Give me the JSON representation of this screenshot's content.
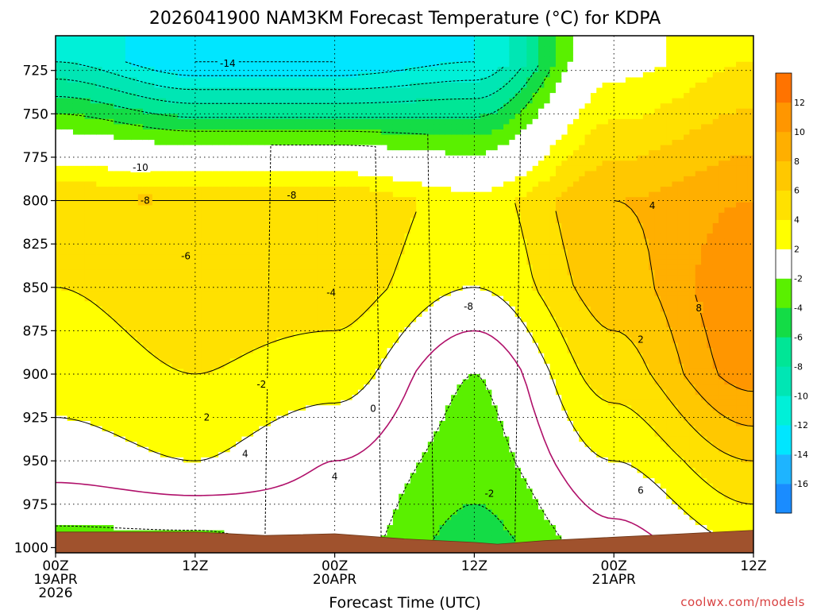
{
  "chart_data": {
    "type": "heatmap",
    "title": "2026041900 NAM3KM Forecast Temperature (°C) for KDPA",
    "xlabel": "Forecast Time (UTC)",
    "ylabel": "",
    "credit": "coolwx.com/models",
    "x_range_hours": [
      0,
      60
    ],
    "y_range_hPa": [
      1003,
      705
    ],
    "y_scale": "pressure (inverted)",
    "x_ticks": [
      {
        "hour": 0,
        "lines": [
          "00Z",
          "19APR",
          "2026"
        ]
      },
      {
        "hour": 12,
        "lines": [
          "12Z"
        ]
      },
      {
        "hour": 24,
        "lines": [
          "00Z",
          "20APR"
        ]
      },
      {
        "hour": 36,
        "lines": [
          "12Z"
        ]
      },
      {
        "hour": 48,
        "lines": [
          "00Z",
          "21APR"
        ]
      },
      {
        "hour": 60,
        "lines": [
          "12Z"
        ]
      }
    ],
    "y_ticks": [
      725,
      750,
      775,
      800,
      825,
      850,
      875,
      900,
      925,
      950,
      975,
      1000
    ],
    "grid": "dotted",
    "colorbar": {
      "placement": "right",
      "levels": [
        -18,
        -16,
        -14,
        -12,
        -10,
        -8,
        -6,
        -4,
        -2,
        2,
        4,
        6,
        8,
        10,
        12,
        14
      ],
      "tick_labels": [
        "-16",
        "-14",
        "-12",
        "-10",
        "-8",
        "-6",
        "-4",
        "-2",
        "2",
        "4",
        "6",
        "8",
        "10",
        "12"
      ],
      "colors": [
        "#1a8cff",
        "#1eb4ff",
        "#00e6ff",
        "#00f0d8",
        "#00e6b4",
        "#00e696",
        "#14dc46",
        "#5af000",
        "#ffffff",
        "#ffff00",
        "#ffe100",
        "#ffc800",
        "#ffaf00",
        "#ff9600",
        "#ff7300"
      ]
    },
    "series": [
      {
        "hour": 0,
        "temps": [
          -3,
          1,
          3,
          4,
          6,
          -10
        ]
      },
      {
        "hour": 12,
        "temps": [
          -3,
          2,
          4,
          5,
          6,
          -14
        ]
      },
      {
        "hour": 24,
        "temps": [
          -1,
          0,
          3,
          5,
          6,
          -14
        ]
      },
      {
        "hour": 36,
        "temps": [
          -5,
          -3,
          -2,
          2,
          3,
          -12
        ]
      },
      {
        "hour": 48,
        "temps": [
          -1,
          2,
          5,
          7,
          8,
          1
        ]
      },
      {
        "hour": 60,
        "temps": [
          2,
          6,
          11,
          12,
          10,
          4
        ]
      }
    ],
    "contour_labels": [
      {
        "text": "-14",
        "hour": 14.8,
        "hPa": 721
      },
      {
        "text": "-10",
        "hour": 7.3,
        "hPa": 781
      },
      {
        "text": "-8",
        "hour": 7.7,
        "hPa": 800
      },
      {
        "text": "-8",
        "hour": 20.3,
        "hPa": 797
      },
      {
        "text": "-6",
        "hour": 11.2,
        "hPa": 832
      },
      {
        "text": "-4",
        "hour": 23.7,
        "hPa": 853
      },
      {
        "text": "-8",
        "hour": 35.5,
        "hPa": 861
      },
      {
        "text": "-2",
        "hour": 17.7,
        "hPa": 906
      },
      {
        "text": "2",
        "hour": 13.0,
        "hPa": 925
      },
      {
        "text": "0",
        "hour": 27.3,
        "hPa": 920
      },
      {
        "text": "4",
        "hour": 16.3,
        "hPa": 946
      },
      {
        "text": "4",
        "hour": 24.0,
        "hPa": 959
      },
      {
        "text": "-2",
        "hour": 37.3,
        "hPa": 969
      },
      {
        "text": "6",
        "hour": 50.3,
        "hPa": 967
      },
      {
        "text": "2",
        "hour": 50.3,
        "hPa": 880
      },
      {
        "text": "4",
        "hour": 51.3,
        "hPa": 803
      },
      {
        "text": "8",
        "hour": 55.3,
        "hPa": 862
      }
    ]
  }
}
